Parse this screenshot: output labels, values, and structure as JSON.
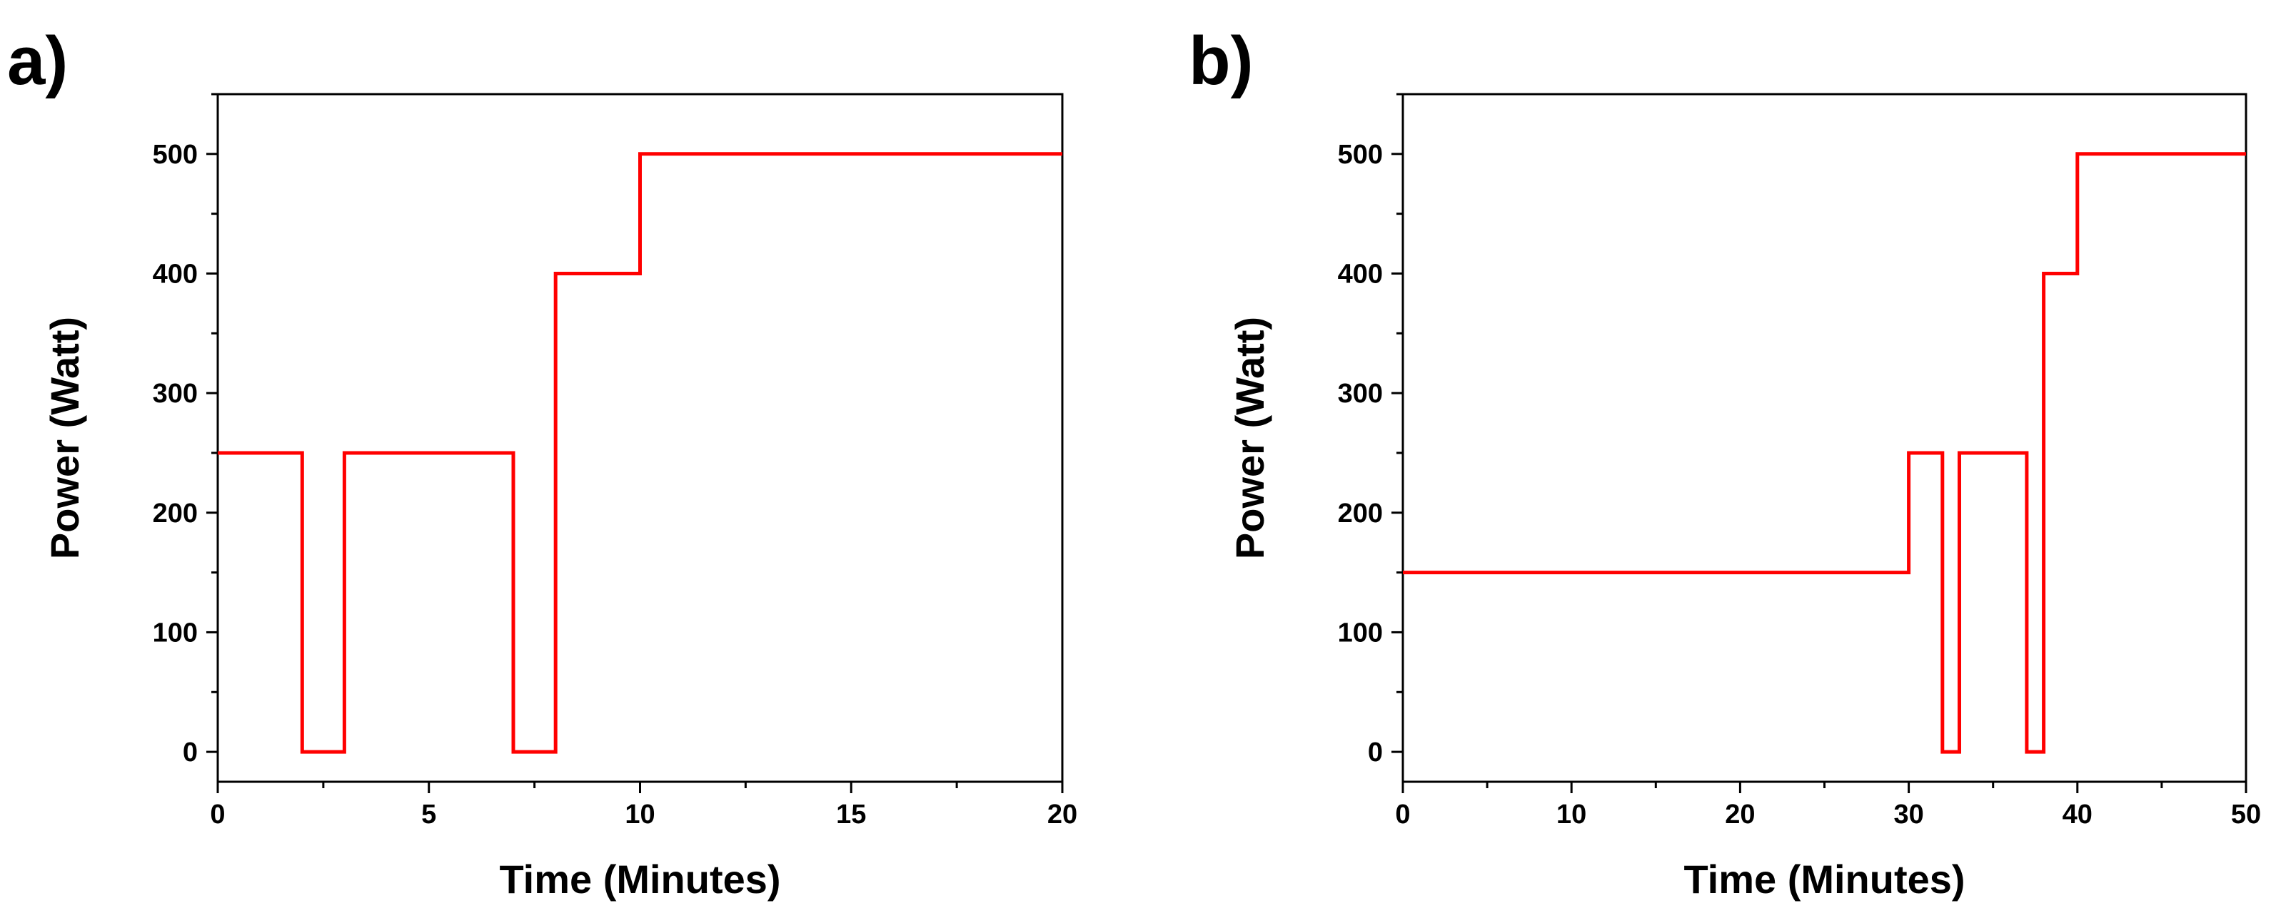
{
  "chart_data": [
    {
      "panel_label": "a)",
      "type": "line",
      "xlabel": "Time (Minutes)",
      "ylabel": "Power (Watt)",
      "xlim": [
        0,
        20
      ],
      "ylim": [
        -25,
        550
      ],
      "xticks": [
        0,
        5,
        10,
        15,
        20
      ],
      "yticks": [
        0,
        100,
        200,
        300,
        400,
        500
      ],
      "grid": false,
      "line_color": "#ff0000",
      "series": [
        {
          "x": [
            0,
            2,
            2,
            3,
            3,
            7,
            7,
            8,
            8,
            10,
            10,
            20
          ],
          "y": [
            250,
            250,
            0,
            0,
            250,
            250,
            0,
            0,
            400,
            400,
            500,
            500
          ]
        }
      ]
    },
    {
      "panel_label": "b)",
      "type": "line",
      "xlabel": "Time (Minutes)",
      "ylabel": "Power (Watt)",
      "xlim": [
        0,
        50
      ],
      "ylim": [
        -25,
        550
      ],
      "xticks": [
        0,
        10,
        20,
        30,
        40,
        50
      ],
      "yticks": [
        0,
        100,
        200,
        300,
        400,
        500
      ],
      "grid": false,
      "line_color": "#ff0000",
      "series": [
        {
          "x": [
            0,
            30,
            30,
            32,
            32,
            33,
            33,
            37,
            37,
            38,
            38,
            40,
            40,
            50
          ],
          "y": [
            150,
            150,
            250,
            250,
            0,
            0,
            250,
            250,
            0,
            0,
            400,
            400,
            500,
            500
          ]
        }
      ]
    }
  ]
}
